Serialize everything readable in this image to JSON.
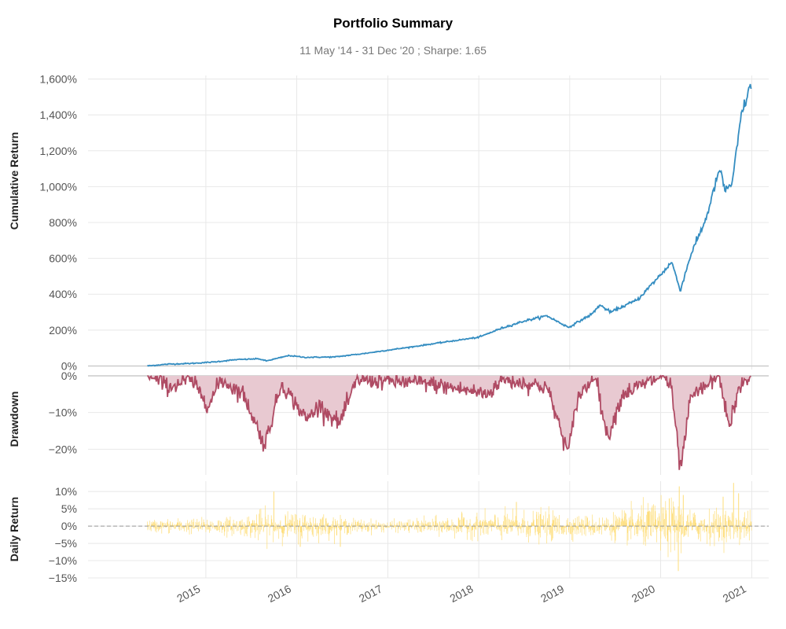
{
  "title": "Portfolio Summary",
  "subtitle": "11 May '14 - 31 Dec '20 ;  Sharpe: 1.65",
  "colors": {
    "cumulative": "#348dc1",
    "drawdown_line": "#af4b64",
    "drawdown_fill": "#e8c9d1",
    "daily": "#fedd78",
    "grid": "#e8e8e8",
    "zero_line": "#999999"
  },
  "chart_data": [
    {
      "type": "line",
      "ylabel": "Cumulative Return",
      "ylim": [
        -20,
        1620
      ],
      "y_ticks": [
        0,
        200,
        400,
        600,
        800,
        1000,
        1200,
        1400,
        1600
      ],
      "y_tick_labels": [
        "0%",
        "200%",
        "400%",
        "600%",
        "800%",
        "1,000%",
        "1,200%",
        "1,400%",
        "1,600%"
      ],
      "unit": "%",
      "points": [
        [
          "2014-05-11",
          0
        ],
        [
          "2014-08-01",
          10
        ],
        [
          "2014-11-01",
          14
        ],
        [
          "2015-02-01",
          22
        ],
        [
          "2015-05-01",
          35
        ],
        [
          "2015-08-01",
          40
        ],
        [
          "2015-09-01",
          28
        ],
        [
          "2015-12-01",
          58
        ],
        [
          "2016-02-01",
          48
        ],
        [
          "2016-06-01",
          50
        ],
        [
          "2016-10-01",
          70
        ],
        [
          "2017-01-01",
          88
        ],
        [
          "2017-04-01",
          105
        ],
        [
          "2017-08-01",
          130
        ],
        [
          "2018-01-01",
          160
        ],
        [
          "2018-04-01",
          210
        ],
        [
          "2018-07-01",
          250
        ],
        [
          "2018-10-01",
          280
        ],
        [
          "2018-12-27",
          215
        ],
        [
          "2019-04-01",
          290
        ],
        [
          "2019-05-01",
          340
        ],
        [
          "2019-06-15",
          300
        ],
        [
          "2019-10-01",
          370
        ],
        [
          "2020-01-15",
          530
        ],
        [
          "2020-02-15",
          580
        ],
        [
          "2020-03-20",
          420
        ],
        [
          "2020-05-01",
          620
        ],
        [
          "2020-07-01",
          820
        ],
        [
          "2020-08-25",
          1100
        ],
        [
          "2020-09-15",
          980
        ],
        [
          "2020-10-15",
          1020
        ],
        [
          "2020-11-20",
          1400
        ],
        [
          "2020-12-31",
          1580
        ]
      ]
    },
    {
      "type": "area",
      "ylabel": "Drawdown",
      "ylim": [
        -27,
        0
      ],
      "y_ticks": [
        0,
        -10,
        -20
      ],
      "y_tick_labels": [
        "0%",
        "−10%",
        "−20%"
      ],
      "unit": "%",
      "points": [
        [
          "2014-05-11",
          0
        ],
        [
          "2014-08-10",
          -3
        ],
        [
          "2014-11-01",
          -1
        ],
        [
          "2015-01-15",
          -8
        ],
        [
          "2015-03-01",
          -1
        ],
        [
          "2015-06-01",
          -5
        ],
        [
          "2015-08-25",
          -19
        ],
        [
          "2015-11-01",
          -2
        ],
        [
          "2016-02-10",
          -12
        ],
        [
          "2016-04-01",
          -8
        ],
        [
          "2016-06-20",
          -13
        ],
        [
          "2016-09-01",
          -1
        ],
        [
          "2017-06-01",
          -2
        ],
        [
          "2018-02-08",
          -5
        ],
        [
          "2018-04-01",
          -1
        ],
        [
          "2018-10-01",
          -3
        ],
        [
          "2018-12-26",
          -21
        ],
        [
          "2019-02-01",
          -6
        ],
        [
          "2019-04-15",
          0
        ],
        [
          "2019-06-01",
          -17
        ],
        [
          "2019-08-01",
          -5
        ],
        [
          "2019-10-01",
          -3
        ],
        [
          "2020-01-15",
          0
        ],
        [
          "2020-02-15",
          -4
        ],
        [
          "2020-03-20",
          -26
        ],
        [
          "2020-05-01",
          -6
        ],
        [
          "2020-08-25",
          0
        ],
        [
          "2020-10-01",
          -14
        ],
        [
          "2020-11-15",
          -3
        ],
        [
          "2020-12-31",
          0
        ]
      ]
    },
    {
      "type": "bar",
      "ylabel": "Daily Return",
      "ylim": [
        -15,
        13
      ],
      "y_ticks": [
        10,
        5,
        0,
        -5,
        -10,
        -15
      ],
      "y_tick_labels": [
        "10%",
        "5%",
        "0%",
        "−5%",
        "−10%",
        "−15%"
      ],
      "unit": "%",
      "volatility_regimes": [
        [
          "2014-05-11",
          1.2
        ],
        [
          "2015-06-01",
          1.8
        ],
        [
          "2015-08-15",
          3.2
        ],
        [
          "2015-10-15",
          2.4
        ],
        [
          "2016-02-01",
          2.8
        ],
        [
          "2016-07-01",
          1.6
        ],
        [
          "2017-01-01",
          1.0
        ],
        [
          "2018-02-01",
          2.4
        ],
        [
          "2018-10-01",
          3.0
        ],
        [
          "2019-01-15",
          2.0
        ],
        [
          "2019-06-01",
          2.2
        ],
        [
          "2020-02-20",
          5.5
        ],
        [
          "2020-04-15",
          3.0
        ],
        [
          "2020-07-01",
          3.2
        ],
        [
          "2020-12-31",
          3.0
        ]
      ],
      "notable": [
        [
          "2015-10-01",
          10
        ],
        [
          "2016-01-15",
          -6
        ],
        [
          "2016-06-24",
          -6
        ],
        [
          "2018-06-01",
          7
        ],
        [
          "2020-03-12",
          -13
        ],
        [
          "2020-03-16",
          11.5
        ],
        [
          "2020-04-01",
          9
        ],
        [
          "2020-09-08",
          8.5
        ],
        [
          "2020-10-20",
          12.5
        ],
        [
          "2020-11-09",
          9.5
        ]
      ]
    }
  ],
  "x_axis": {
    "ticks": [
      "2015-01-01",
      "2016-01-01",
      "2017-01-01",
      "2018-01-01",
      "2019-01-01",
      "2020-01-01",
      "2021-01-01"
    ],
    "tick_labels": [
      "2015",
      "2016",
      "2017",
      "2018",
      "2019",
      "2020",
      "2021"
    ],
    "xlim": [
      "2013-09-15",
      "2021-03-10"
    ]
  }
}
